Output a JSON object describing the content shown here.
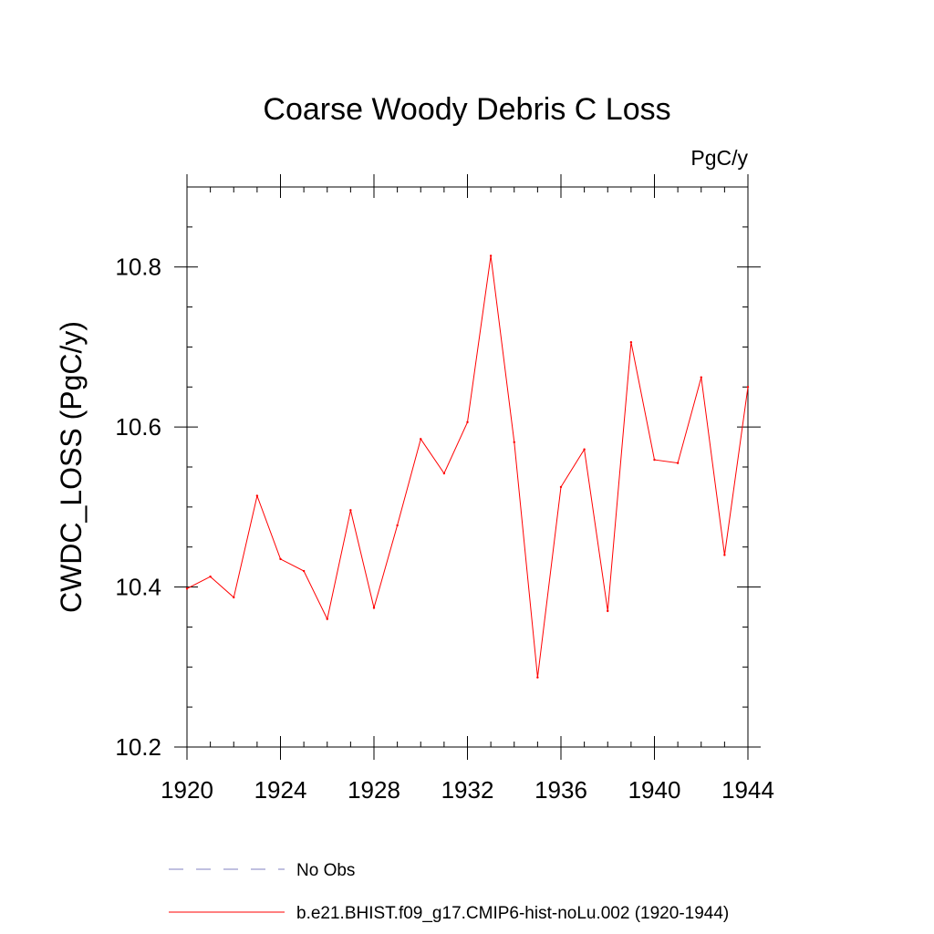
{
  "chart_data": {
    "type": "line",
    "title": "Coarse Woody Debris C Loss",
    "units_label": "PgC/y",
    "xlabel": "",
    "ylabel": "CWDC_LOSS  (PgC/y)",
    "xlim": [
      1920,
      1944
    ],
    "ylim": [
      10.2,
      10.9
    ],
    "x_ticks": [
      1920,
      1924,
      1928,
      1932,
      1936,
      1940,
      1944
    ],
    "y_ticks": [
      10.2,
      10.4,
      10.6,
      10.8
    ],
    "x_tick_labels": [
      "1920",
      "1924",
      "1928",
      "1932",
      "1936",
      "1940",
      "1944"
    ],
    "y_tick_labels": [
      "10.2",
      "10.4",
      "10.6",
      "10.8"
    ],
    "series": [
      {
        "name": "b.e21.BHIST.f09_g17.CMIP6-hist-noLu.002 (1920-1944)",
        "color": "#ff0000",
        "x": [
          1920,
          1921,
          1922,
          1923,
          1924,
          1925,
          1926,
          1927,
          1928,
          1929,
          1930,
          1931,
          1932,
          1933,
          1934,
          1935,
          1936,
          1937,
          1938,
          1939,
          1940,
          1941,
          1942,
          1943,
          1944
        ],
        "values": [
          10.398,
          10.413,
          10.387,
          10.514,
          10.435,
          10.42,
          10.36,
          10.496,
          10.374,
          10.477,
          10.585,
          10.542,
          10.606,
          10.814,
          10.581,
          10.287,
          10.525,
          10.572,
          10.37,
          10.706,
          10.559,
          10.555,
          10.662,
          10.44,
          10.65
        ]
      }
    ],
    "legend": [
      {
        "label": "No Obs",
        "color": "#8080c0",
        "style": "dashed"
      },
      {
        "label": "b.e21.BHIST.f09_g17.CMIP6-hist-noLu.002 (1920-1944)",
        "color": "#ff0000",
        "style": "solid"
      }
    ],
    "grid": false,
    "legend_position": "bottom"
  }
}
